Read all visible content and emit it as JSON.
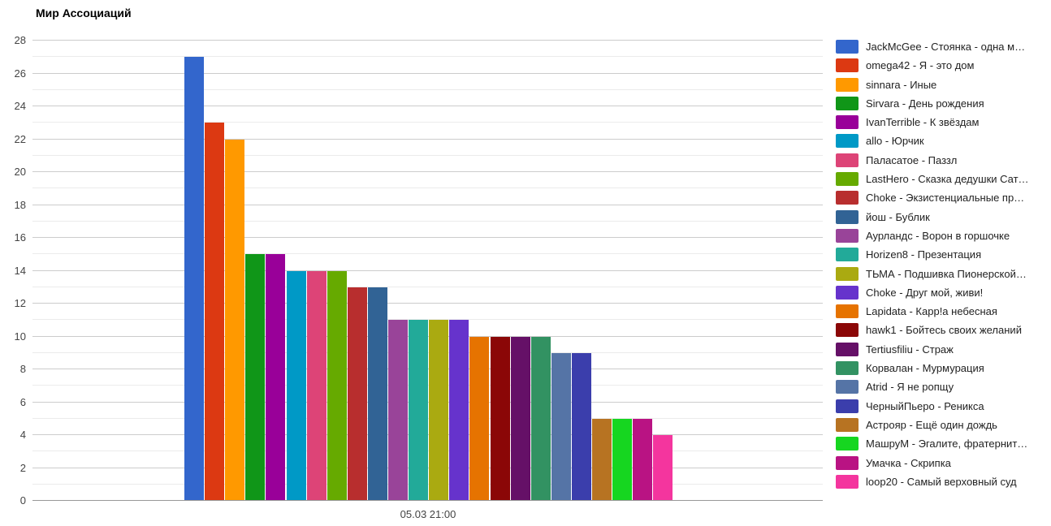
{
  "chart_data": {
    "type": "bar",
    "title": "Мир Ассоциаций",
    "categories": [
      "05.03 21:00"
    ],
    "xlabel": "",
    "ylabel": "",
    "ylim": [
      0,
      28
    ],
    "y_labeled_tick_step": 2,
    "y_minor_gridline_step": 1,
    "grid": true,
    "legend_position": "right",
    "series": [
      {
        "name": "JackMcGee - Стоянка - одна м…",
        "value": 27,
        "color": "#3366CC"
      },
      {
        "name": "omega42 - Я - это дом",
        "value": 23,
        "color": "#DC3912"
      },
      {
        "name": "sinnara - Иные",
        "value": 22,
        "color": "#FF9900"
      },
      {
        "name": "Sirvara - День рождения",
        "value": 15,
        "color": "#109618"
      },
      {
        "name": "IvanTerrible - К звёздам",
        "value": 15,
        "color": "#990099"
      },
      {
        "name": "allo - Юрчик",
        "value": 14,
        "color": "#0099C6"
      },
      {
        "name": "Паласатое - Паззл",
        "value": 14,
        "color": "#DD4477"
      },
      {
        "name": "LastHero - Сказка дедушки Сат…",
        "value": 14,
        "color": "#66AA00"
      },
      {
        "name": "Choke - Экзистенциальные пр…",
        "value": 13,
        "color": "#B82E2E"
      },
      {
        "name": "йош - Бублик",
        "value": 13,
        "color": "#316395"
      },
      {
        "name": "Аурландс - Ворон в горшочке",
        "value": 11,
        "color": "#994499"
      },
      {
        "name": "Horizen8 - Презентация",
        "value": 11,
        "color": "#22AA99"
      },
      {
        "name": "ТЬМА - Подшивка Пионерской…",
        "value": 11,
        "color": "#AAAA11"
      },
      {
        "name": "Choke - Друг мой, живи!",
        "value": 11,
        "color": "#6633CC"
      },
      {
        "name": "Lapidata - Карр!а небесная",
        "value": 10,
        "color": "#E67300"
      },
      {
        "name": "hawk1 - Бойтесь своих желаний",
        "value": 10,
        "color": "#8B0707"
      },
      {
        "name": "Tertiusfiliu - Страж",
        "value": 10,
        "color": "#651067"
      },
      {
        "name": "Корвалан - Мурмурация",
        "value": 10,
        "color": "#329262"
      },
      {
        "name": "Atrid - Я не ропщу",
        "value": 9,
        "color": "#5574A6"
      },
      {
        "name": "ЧерныйПьеро - Реникса",
        "value": 9,
        "color": "#3B3EAC"
      },
      {
        "name": "Астрояр - Ещё один дождь",
        "value": 5,
        "color": "#B77322"
      },
      {
        "name": "МашруМ - Эгалите, фратернит…",
        "value": 5,
        "color": "#16D620"
      },
      {
        "name": "Умачка - Скрипка",
        "value": 5,
        "color": "#B91383"
      },
      {
        "name": "loop20 - Самый верховный суд",
        "value": 4,
        "color": "#F4359E"
      }
    ]
  },
  "colors": {
    "background": "#ffffff",
    "grid_major": "#cccccc",
    "grid_minor": "#ebebeb",
    "baseline": "#999999",
    "axis_text": "#444444",
    "legend_text": "#222222",
    "title_text": "#000000"
  }
}
